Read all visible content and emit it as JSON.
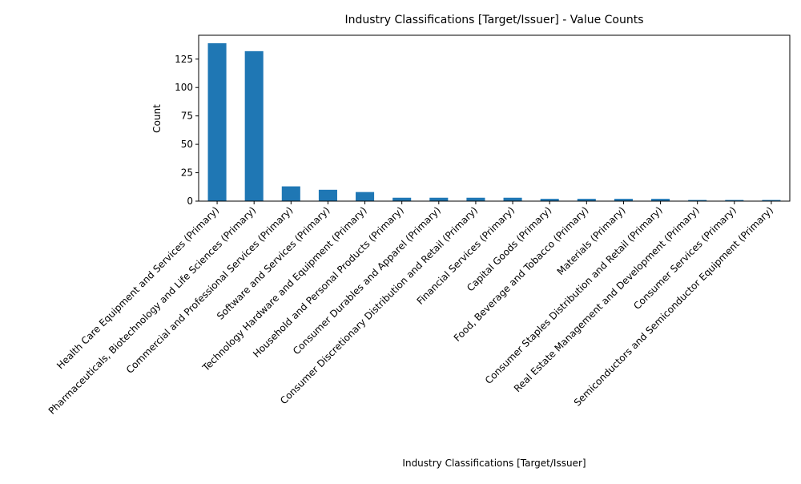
{
  "chart_data": {
    "type": "bar",
    "title": "Industry Classifications [Target/Issuer] - Value Counts",
    "xlabel": "Industry Classifications [Target/Issuer]",
    "ylabel": "Count",
    "ylim": [
      0,
      146
    ],
    "yticks": [
      0,
      25,
      50,
      75,
      100,
      125
    ],
    "grid": false,
    "categories": [
      "Health Care Equipment and Services (Primary)",
      "Pharmaceuticals, Biotechnology and Life Sciences (Primary)",
      "Commercial and Professional Services (Primary)",
      "Software and Services (Primary)",
      "Technology Hardware and Equipment (Primary)",
      "Household and Personal Products (Primary)",
      "Consumer Durables and Apparel (Primary)",
      "Consumer Discretionary Distribution and Retail (Primary)",
      "Financial Services (Primary)",
      "Capital Goods (Primary)",
      "Food, Beverage and Tobacco (Primary)",
      "Materials (Primary)",
      "Consumer Staples Distribution and Retail (Primary)",
      "Real Estate Management and Development (Primary)",
      "Consumer Services (Primary)",
      "Semiconductors and Semiconductor Equipment (Primary)"
    ],
    "values": [
      139,
      132,
      13,
      10,
      8,
      3,
      3,
      3,
      3,
      2,
      2,
      2,
      2,
      1,
      1,
      1
    ],
    "bar_color": "#1f77b4"
  }
}
